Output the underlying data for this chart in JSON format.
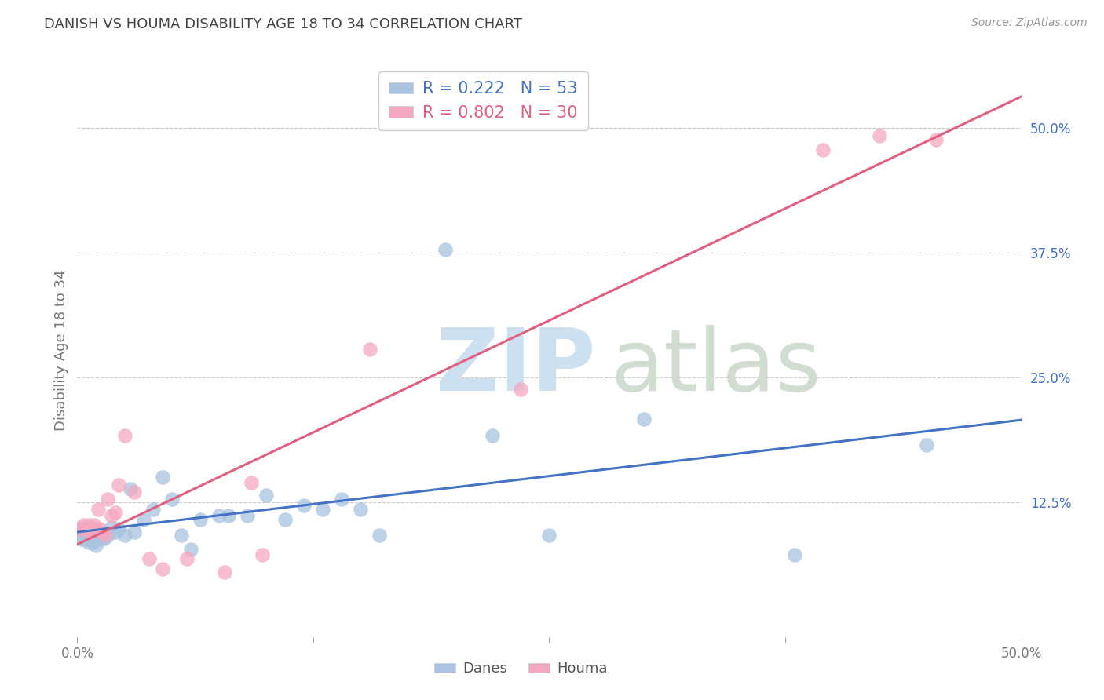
{
  "title": "DANISH VS HOUMA DISABILITY AGE 18 TO 34 CORRELATION CHART",
  "source": "Source: ZipAtlas.com",
  "xlabel": "",
  "ylabel": "Disability Age 18 to 34",
  "xlim": [
    0.0,
    0.5
  ],
  "ylim": [
    -0.01,
    0.565
  ],
  "xticks": [
    0.0,
    0.125,
    0.25,
    0.375,
    0.5
  ],
  "xtick_labels": [
    "0.0%",
    "",
    "",
    "",
    "50.0%"
  ],
  "ytick_labels_right": [
    "50.0%",
    "37.5%",
    "25.0%",
    "12.5%"
  ],
  "yticks_right": [
    0.5,
    0.375,
    0.25,
    0.125
  ],
  "danes_color": "#a8c4e0",
  "houma_color": "#f4a8c0",
  "danes_line_color": "#4472c4",
  "houma_line_color": "#e06080",
  "danes_R": 0.222,
  "danes_N": 53,
  "houma_R": 0.802,
  "houma_N": 30,
  "background_color": "#ffffff",
  "grid_color": "#cccccc",
  "danes_x": [
    0.001,
    0.002,
    0.003,
    0.003,
    0.004,
    0.004,
    0.005,
    0.005,
    0.006,
    0.006,
    0.007,
    0.007,
    0.008,
    0.008,
    0.009,
    0.009,
    0.01,
    0.01,
    0.011,
    0.012,
    0.013,
    0.014,
    0.015,
    0.016,
    0.018,
    0.02,
    0.022,
    0.025,
    0.028,
    0.03,
    0.035,
    0.04,
    0.045,
    0.05,
    0.055,
    0.06,
    0.065,
    0.075,
    0.08,
    0.09,
    0.1,
    0.11,
    0.12,
    0.13,
    0.14,
    0.15,
    0.16,
    0.195,
    0.22,
    0.25,
    0.3,
    0.38,
    0.45
  ],
  "danes_y": [
    0.09,
    0.088,
    0.092,
    0.095,
    0.088,
    0.094,
    0.09,
    0.096,
    0.085,
    0.092,
    0.088,
    0.095,
    0.085,
    0.092,
    0.088,
    0.095,
    0.082,
    0.092,
    0.09,
    0.095,
    0.088,
    0.092,
    0.09,
    0.092,
    0.1,
    0.095,
    0.098,
    0.092,
    0.138,
    0.095,
    0.108,
    0.118,
    0.15,
    0.128,
    0.092,
    0.078,
    0.108,
    0.112,
    0.112,
    0.112,
    0.132,
    0.108,
    0.122,
    0.118,
    0.128,
    0.118,
    0.092,
    0.378,
    0.192,
    0.092,
    0.208,
    0.072,
    0.182
  ],
  "houma_x": [
    0.002,
    0.003,
    0.004,
    0.005,
    0.006,
    0.007,
    0.008,
    0.009,
    0.01,
    0.011,
    0.012,
    0.013,
    0.015,
    0.016,
    0.018,
    0.02,
    0.022,
    0.025,
    0.03,
    0.038,
    0.045,
    0.058,
    0.078,
    0.092,
    0.098,
    0.155,
    0.235,
    0.395,
    0.425,
    0.455
  ],
  "houma_y": [
    0.098,
    0.102,
    0.098,
    0.098,
    0.102,
    0.095,
    0.098,
    0.102,
    0.098,
    0.118,
    0.098,
    0.095,
    0.092,
    0.128,
    0.112,
    0.115,
    0.142,
    0.192,
    0.135,
    0.068,
    0.058,
    0.068,
    0.055,
    0.145,
    0.072,
    0.278,
    0.238,
    0.478,
    0.492,
    0.488
  ]
}
